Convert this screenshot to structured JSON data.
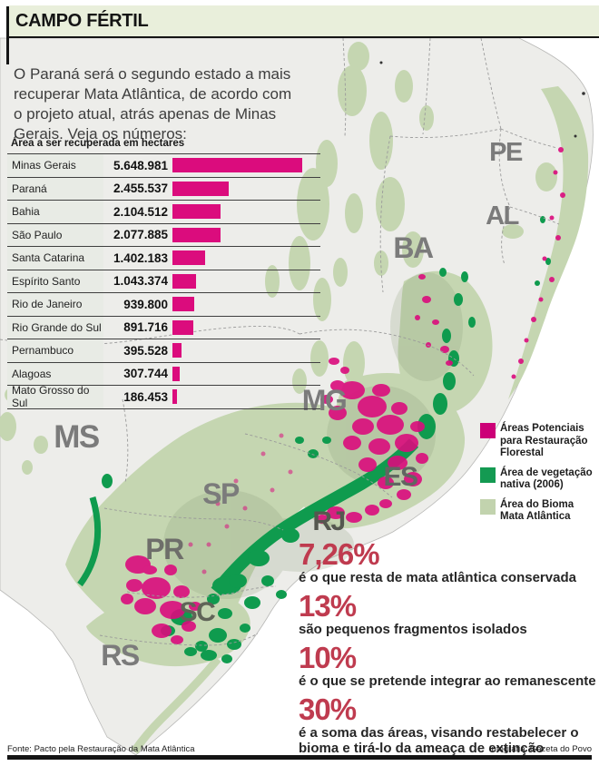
{
  "header": {
    "title": "CAMPO FÉRTIL"
  },
  "intro": "O Paraná será o segundo estado a mais recuperar Mata Atlântica, de acordo com o projeto atual, atrás apenas de Minas Gerais. Veja os números:",
  "chart_data": {
    "type": "bar",
    "orientation": "horizontal",
    "title": "Área a ser recuperada em hectares",
    "unit": "hectares",
    "categories": [
      "Minas Gerais",
      "Paraná",
      "Bahia",
      "São Paulo",
      "Santa Catarina",
      "Espírito Santo",
      "Rio de Janeiro",
      "Rio Grande do Sul",
      "Pernambuco",
      "Alagoas",
      "Mato Grosso do Sul"
    ],
    "values": [
      5648981,
      2455537,
      2104512,
      2077885,
      1402183,
      1043374,
      939800,
      891716,
      395528,
      307744,
      186453
    ],
    "value_labels": [
      "5.648.981",
      "2.455.537",
      "2.104.512",
      "2.077.885",
      "1.402.183",
      "1.043.374",
      "939.800",
      "891.716",
      "395.528",
      "307.744",
      "186.453"
    ],
    "bar_color": "#db0c7d"
  },
  "map": {
    "labels": [
      "PE",
      "AL",
      "BA",
      "MG",
      "MS",
      "SP",
      "ES",
      "RJ",
      "PR",
      "SC",
      "RS"
    ],
    "colors": {
      "land": "#ededea",
      "coast": "#b8b8b6",
      "biome": "#c5d6b1",
      "native": "#0f9b4e",
      "restoration": "#db0c7d",
      "border": "#9a9a9a",
      "label": "#7b7b7b",
      "texture": "#8a9a78"
    }
  },
  "legend": {
    "items": [
      {
        "label": "Áreas Potenciais para Restauração Florestal",
        "color": "#cc0077"
      },
      {
        "label": "Área de vegetação nativa (2006)",
        "color": "#149a52"
      },
      {
        "label": "Área do Bioma Mata Atlântica",
        "color": "#c2d3ae"
      }
    ]
  },
  "stats": [
    {
      "value": "7,26%",
      "caption": "é o que resta de mata atlântica conservada"
    },
    {
      "value": "13%",
      "caption": "são pequenos fragmentos isolados"
    },
    {
      "value": "10%",
      "caption": "é o que se pretende integrar ao remanescente"
    },
    {
      "value": "30%",
      "caption": "é a soma das áreas, visando restabelecer o bioma e tirá-lo da ameaça de extinção"
    }
  ],
  "footer": {
    "source": "Fonte: Pacto pela Restauração da Mata Atlântica",
    "credit": "Infografia: Gazeta do Povo"
  },
  "colors": {
    "accent_red": "#bf3b4f",
    "header_band": "#e9efdb"
  }
}
